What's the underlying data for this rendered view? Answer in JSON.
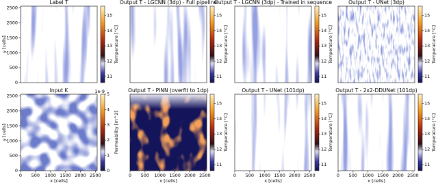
{
  "chart_data": [
    {
      "type": "heatmap",
      "title": "Label T",
      "xlim": [
        0,
        2560
      ],
      "ylim": [
        0,
        2560
      ],
      "yticks": [
        0,
        500,
        1000,
        1500,
        2000,
        2500
      ],
      "ylabel": "y [cells]",
      "colorbar": {
        "label": "Temperature [°C]",
        "lim": [
          10.6,
          15.6
        ],
        "ticks": [
          11,
          12,
          13,
          14,
          15
        ]
      }
    },
    {
      "type": "heatmap",
      "title": "Output T - LGCNN (3dp) - Full pipeline",
      "xlim": [
        0,
        2560
      ],
      "ylim": [
        0,
        2560
      ],
      "colorbar": {
        "label": "Temperature [°C]",
        "lim": [
          10.6,
          15.6
        ],
        "ticks": [
          11,
          12,
          13,
          14,
          15
        ]
      }
    },
    {
      "type": "heatmap",
      "title": "Output T - LGCNN (3dp) - Trained in sequence",
      "xlim": [
        0,
        2560
      ],
      "ylim": [
        0,
        2560
      ],
      "colorbar": {
        "label": "Temperature [°C]",
        "lim": [
          10.6,
          15.6
        ],
        "ticks": [
          11,
          12,
          13,
          14,
          15
        ]
      }
    },
    {
      "type": "heatmap",
      "title": "Output T - UNet (3dp)",
      "xlim": [
        0,
        2560
      ],
      "ylim": [
        0,
        2560
      ],
      "colorbar": {
        "label": "Temperature [°C]",
        "lim": [
          10.6,
          15.6
        ],
        "ticks": [
          11,
          12,
          13,
          14,
          15
        ]
      }
    },
    {
      "type": "heatmap",
      "title": "Input K",
      "xlim": [
        0,
        2560
      ],
      "ylim": [
        0,
        2560
      ],
      "xticks": [
        0,
        500,
        1000,
        1500,
        2000,
        2500
      ],
      "yticks": [
        0,
        500,
        1000,
        1500,
        2000,
        2500
      ],
      "xlabel": "x [cells]",
      "ylabel": "y [cells]",
      "colorbar": {
        "label": "Permeability [m^2]",
        "lim": [
          0,
          5
        ],
        "ticks": [
          0,
          1,
          2,
          3,
          4,
          5
        ],
        "offset": "1e-9"
      }
    },
    {
      "type": "heatmap",
      "title": "Output T - PINN (overfit to 1dp)",
      "xlim": [
        0,
        2560
      ],
      "ylim": [
        0,
        2560
      ],
      "xticks": [
        0,
        500,
        1000,
        1500,
        2000,
        2500
      ],
      "xlabel": "x [cells]",
      "colorbar": {
        "label": "Temperature [°C]",
        "lim": [
          10.6,
          15.6
        ],
        "ticks": [
          11,
          12,
          13,
          14,
          15
        ]
      }
    },
    {
      "type": "heatmap",
      "title": "Output T - UNet (101dp)",
      "xlim": [
        0,
        2560
      ],
      "ylim": [
        0,
        2560
      ],
      "xticks": [
        0,
        500,
        1000,
        1500,
        2000,
        2500
      ],
      "xlabel": "x [cells]",
      "colorbar": {
        "label": "Temperature [°C]",
        "lim": [
          10.6,
          15.6
        ],
        "ticks": [
          11,
          12,
          13,
          14,
          15
        ]
      }
    },
    {
      "type": "heatmap",
      "title": "Output T - 2x2-DDUNet (101dp)",
      "xlim": [
        0,
        2560
      ],
      "ylim": [
        0,
        2560
      ],
      "xticks": [
        0,
        500,
        1000,
        1500,
        2000,
        2500
      ],
      "xlabel": "x [cells]",
      "colorbar": {
        "label": "Temperature [°C]",
        "lim": [
          10.6,
          15.6
        ],
        "ticks": [
          11,
          12,
          13,
          14,
          15
        ]
      }
    }
  ]
}
